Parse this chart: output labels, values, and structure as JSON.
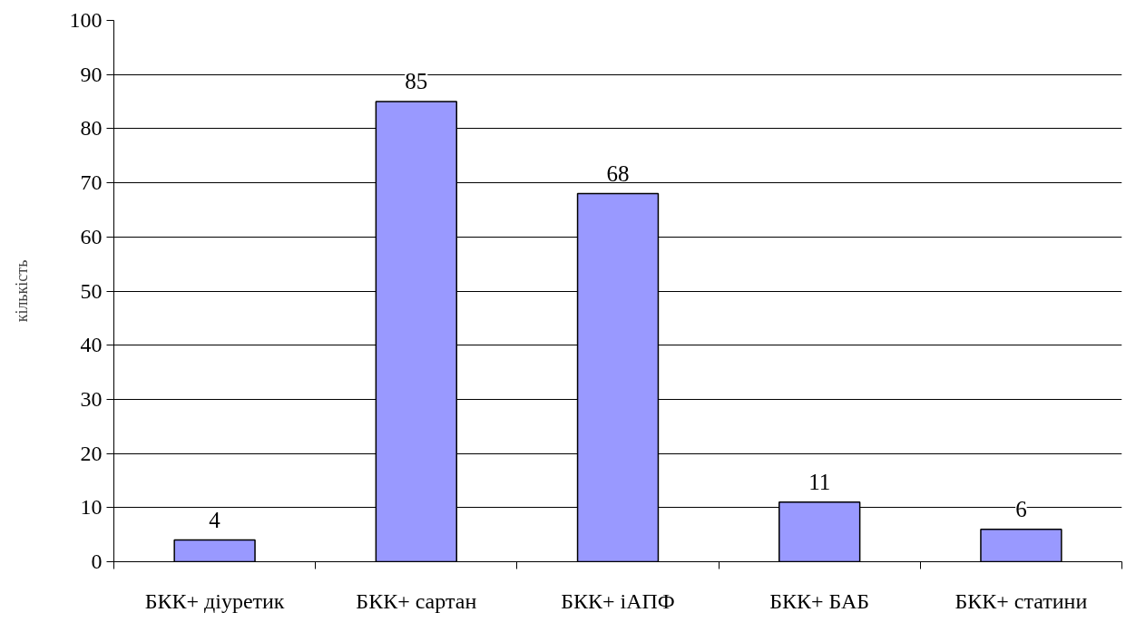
{
  "chart_data": {
    "type": "bar",
    "ylabel": "кількість",
    "categories": [
      "БКК+ діуретик",
      "БКК+ сартан",
      "БКК+ іАПФ",
      "БКК+ БАБ",
      "БКК+ статини"
    ],
    "values": [
      4,
      85,
      68,
      11,
      6
    ],
    "color": "#9999ff",
    "ylim": [
      0,
      100
    ],
    "yticks": [
      0,
      10,
      20,
      30,
      40,
      50,
      60,
      70,
      80,
      90,
      100
    ],
    "grid": "y",
    "data_labels": true
  }
}
